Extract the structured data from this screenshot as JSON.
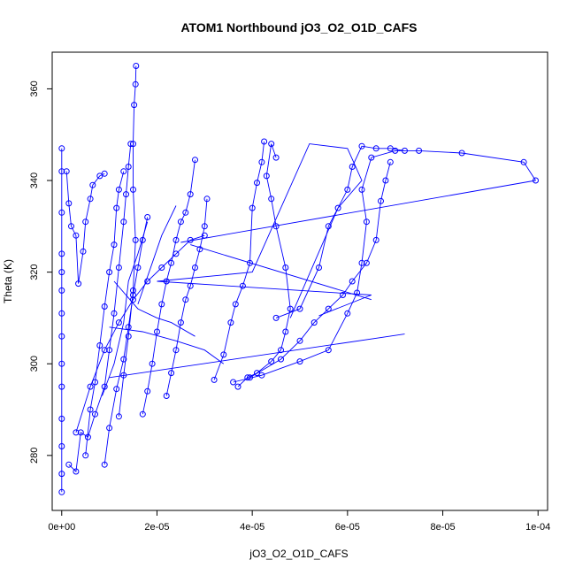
{
  "chart_data": {
    "type": "scatter",
    "title": "ATOM1 Northbound jO3_O2_O1D_CAFS",
    "xlabel": "jO3_O2_O1D_CAFS",
    "ylabel": "Theta (K)",
    "xlim": [
      -2e-06,
      0.000102
    ],
    "ylim": [
      268,
      368
    ],
    "x_ticks": [
      0,
      2e-05,
      4e-05,
      6e-05,
      8e-05,
      0.0001
    ],
    "x_tick_labels": [
      "0e+00",
      "2e-05",
      "4e-05",
      "6e-05",
      "8e-05",
      "1e-04"
    ],
    "y_ticks": [
      280,
      300,
      320,
      340,
      360
    ],
    "y_tick_labels": [
      "280",
      "300",
      "320",
      "340",
      "360"
    ],
    "grid": false,
    "legend": "none",
    "color": "#0000ff",
    "series": [
      {
        "style": "line+points",
        "points": [
          [
            0.0,
            272.0
          ],
          [
            0.0,
            276.0
          ],
          [
            0.0,
            282.0
          ],
          [
            0.0,
            288.0
          ],
          [
            0.0,
            295.0
          ],
          [
            0.0,
            300.0
          ],
          [
            0.0,
            306.0
          ],
          [
            0.0,
            311.0
          ],
          [
            0.0,
            316.0
          ],
          [
            0.0,
            320.0
          ],
          [
            0.0,
            324.0
          ],
          [
            0.0,
            333.0
          ],
          [
            0.0,
            342.0
          ],
          [
            0.0,
            347.0
          ]
        ]
      },
      {
        "style": "line+points",
        "points": [
          [
            1e-06,
            342.0
          ],
          [
            1.5e-06,
            335.0
          ],
          [
            2e-06,
            330.0
          ],
          [
            3e-06,
            328.0
          ],
          [
            3.5e-06,
            317.5
          ],
          [
            4.5e-06,
            324.5
          ],
          [
            5e-06,
            331.0
          ],
          [
            6e-06,
            336.0
          ],
          [
            6.5e-06,
            339.0
          ],
          [
            8e-06,
            341.0
          ],
          [
            9e-06,
            341.5
          ]
        ]
      },
      {
        "style": "line+points",
        "points": [
          [
            1.5e-06,
            278.0
          ],
          [
            3e-06,
            276.5
          ],
          [
            4e-06,
            285.0
          ],
          [
            5.5e-06,
            284.0
          ],
          [
            7e-06,
            289.0
          ],
          [
            9e-06,
            295.0
          ],
          [
            1e-05,
            303.0
          ],
          [
            1.1e-05,
            311.0
          ],
          [
            1.2e-05,
            321.0
          ],
          [
            1.3e-05,
            331.0
          ],
          [
            1.35e-05,
            337.0
          ],
          [
            1.4e-05,
            343.0
          ],
          [
            1.45e-05,
            348.0
          ]
        ]
      },
      {
        "style": "line+points",
        "points": [
          [
            1.2e-05,
            288.5
          ],
          [
            1.3e-05,
            297.5
          ],
          [
            1.4e-05,
            306.0
          ],
          [
            1.5e-05,
            316.0
          ],
          [
            1.55e-05,
            327.0
          ],
          [
            1.5e-05,
            338.0
          ],
          [
            1.5e-05,
            348.0
          ],
          [
            1.52e-05,
            356.5
          ],
          [
            1.55e-05,
            361.0
          ],
          [
            1.56e-05,
            365.0
          ]
        ]
      },
      {
        "style": "line+points",
        "points": [
          [
            5e-06,
            280.0
          ],
          [
            6e-06,
            290.0
          ],
          [
            7e-06,
            296.0
          ],
          [
            8e-06,
            304.0
          ],
          [
            9e-06,
            312.5
          ],
          [
            1e-05,
            320.0
          ],
          [
            1.1e-05,
            326.0
          ],
          [
            1.15e-05,
            334.0
          ],
          [
            1.2e-05,
            338.0
          ],
          [
            1.3e-05,
            342.0
          ]
        ]
      },
      {
        "style": "line+points",
        "points": [
          [
            9e-06,
            278.0
          ],
          [
            1e-05,
            286.0
          ],
          [
            1.15e-05,
            294.5
          ],
          [
            1.3e-05,
            301.0
          ],
          [
            1.4e-05,
            308.0
          ],
          [
            1.5e-05,
            315.0
          ],
          [
            1.6e-05,
            321.0
          ],
          [
            1.7e-05,
            327.0
          ],
          [
            1.8e-05,
            332.0
          ]
        ]
      },
      {
        "style": "line+points",
        "points": [
          [
            1.7e-05,
            289.0
          ],
          [
            1.8e-05,
            294.0
          ],
          [
            1.9e-05,
            300.0
          ],
          [
            2e-05,
            307.0
          ],
          [
            2.1e-05,
            313.0
          ],
          [
            2.2e-05,
            318.0
          ],
          [
            2.3e-05,
            322.0
          ],
          [
            2.4e-05,
            327.0
          ],
          [
            2.5e-05,
            331.0
          ],
          [
            2.6e-05,
            333.0
          ],
          [
            2.7e-05,
            337.0
          ],
          [
            2.8e-05,
            344.5
          ]
        ]
      },
      {
        "style": "line+points",
        "points": [
          [
            2.2e-05,
            293.0
          ],
          [
            2.3e-05,
            298.0
          ],
          [
            2.4e-05,
            303.0
          ],
          [
            2.5e-05,
            309.0
          ],
          [
            2.6e-05,
            314.0
          ],
          [
            2.7e-05,
            317.0
          ],
          [
            2.8e-05,
            321.0
          ],
          [
            2.9e-05,
            325.0
          ],
          [
            3e-05,
            330.0
          ],
          [
            3.05e-05,
            336.0
          ]
        ]
      },
      {
        "style": "line+points",
        "points": [
          [
            3e-06,
            285.0
          ],
          [
            6e-06,
            295.0
          ],
          [
            9e-06,
            303.0
          ],
          [
            1.2e-05,
            309.0
          ],
          [
            1.5e-05,
            314.0
          ],
          [
            1.8e-05,
            318.0
          ],
          [
            2.1e-05,
            321.0
          ],
          [
            2.4e-05,
            324.0
          ],
          [
            2.7e-05,
            327.0
          ],
          [
            3e-05,
            328.0
          ]
        ]
      },
      {
        "style": "line+points",
        "points": [
          [
            3.2e-05,
            296.5
          ],
          [
            3.4e-05,
            302.0
          ],
          [
            3.55e-05,
            309.0
          ],
          [
            3.65e-05,
            313.0
          ],
          [
            3.8e-05,
            317.0
          ],
          [
            3.95e-05,
            322.0
          ],
          [
            4e-05,
            334.0
          ],
          [
            4.1e-05,
            339.5
          ],
          [
            4.2e-05,
            344.0
          ],
          [
            4.25e-05,
            348.5
          ]
        ]
      },
      {
        "style": "line+points",
        "points": [
          [
            3.7e-05,
            295.0
          ],
          [
            3.9e-05,
            297.0
          ],
          [
            4.1e-05,
            298.0
          ],
          [
            4.4e-05,
            300.5
          ],
          [
            4.6e-05,
            303.0
          ],
          [
            4.7e-05,
            307.0
          ],
          [
            4.8e-05,
            312.0
          ],
          [
            4.7e-05,
            321.0
          ],
          [
            4.5e-05,
            330.0
          ],
          [
            4.4e-05,
            336.0
          ],
          [
            4.3e-05,
            341.0
          ],
          [
            4.4e-05,
            348.0
          ],
          [
            4.5e-05,
            345.0
          ]
        ]
      },
      {
        "style": "line+points",
        "points": [
          [
            3.6e-05,
            296.0
          ],
          [
            4.2e-05,
            297.5
          ],
          [
            5e-05,
            300.5
          ],
          [
            5.6e-05,
            303.0
          ],
          [
            6e-05,
            311.0
          ],
          [
            6.2e-05,
            315.5
          ],
          [
            6.3e-05,
            322.0
          ],
          [
            6.4e-05,
            331.0
          ],
          [
            6.3e-05,
            338.0
          ],
          [
            6.5e-05,
            345.0
          ],
          [
            7e-05,
            346.5
          ],
          [
            7.5e-05,
            346.5
          ],
          [
            8.4e-05,
            346.0
          ],
          [
            9.7e-05,
            344.0
          ],
          [
            9.95e-05,
            340.0
          ]
        ]
      },
      {
        "style": "line+points",
        "points": [
          [
            3.95e-05,
            297.0
          ],
          [
            4.6e-05,
            301.0
          ],
          [
            5e-05,
            305.0
          ],
          [
            5.3e-05,
            309.0
          ],
          [
            5.6e-05,
            312.0
          ],
          [
            5.9e-05,
            315.0
          ],
          [
            6.1e-05,
            318.0
          ],
          [
            6.4e-05,
            322.0
          ],
          [
            6.6e-05,
            327.0
          ],
          [
            6.7e-05,
            335.5
          ],
          [
            6.8e-05,
            340.0
          ],
          [
            6.9e-05,
            344.0
          ]
        ]
      },
      {
        "style": "line+points",
        "points": [
          [
            4.5e-05,
            310.0
          ],
          [
            5e-05,
            312.0
          ],
          [
            5.4e-05,
            321.0
          ],
          [
            5.6e-05,
            330.0
          ],
          [
            5.8e-05,
            334.0
          ],
          [
            6e-05,
            338.0
          ],
          [
            6.1e-05,
            343.0
          ],
          [
            6.3e-05,
            347.5
          ],
          [
            6.6e-05,
            347.0
          ],
          [
            6.9e-05,
            347.0
          ],
          [
            7.2e-05,
            346.5
          ]
        ]
      },
      {
        "style": "line",
        "points": [
          [
            1e-05,
            297.0
          ],
          [
            7.2e-05,
            306.5
          ]
        ]
      },
      {
        "style": "line",
        "points": [
          [
            2e-05,
            318.0
          ],
          [
            6.5e-05,
            315.0
          ],
          [
            5.4e-05,
            310.5
          ]
        ]
      },
      {
        "style": "line",
        "points": [
          [
            2.7e-05,
            326.0
          ],
          [
            6.5e-05,
            314.0
          ]
        ]
      },
      {
        "style": "line",
        "points": [
          [
            2.5e-05,
            326.5
          ],
          [
            9.95e-05,
            340.0
          ]
        ]
      },
      {
        "style": "line",
        "points": [
          [
            2e-05,
            318.0
          ],
          [
            4e-05,
            320.0
          ],
          [
            5.2e-05,
            348.0
          ],
          [
            6e-05,
            347.0
          ],
          [
            6.3e-05,
            340.0
          ],
          [
            5.8e-05,
            334.0
          ],
          [
            4.8e-05,
            310.0
          ]
        ]
      },
      {
        "style": "line",
        "points": [
          [
            8.5e-06,
            293.0
          ],
          [
            1.1e-05,
            300.0
          ],
          [
            1.3e-05,
            309.0
          ],
          [
            1.4e-05,
            318.0
          ],
          [
            1.6e-05,
            324.0
          ],
          [
            1.8e-05,
            331.0
          ]
        ]
      },
      {
        "style": "line",
        "points": [
          [
            1e-05,
            308.0
          ],
          [
            1.7e-05,
            307.0
          ],
          [
            2.4e-05,
            305.0
          ],
          [
            3e-05,
            303.0
          ],
          [
            3.4e-05,
            300.0
          ]
        ]
      },
      {
        "style": "line",
        "points": [
          [
            1.1e-05,
            318.0
          ],
          [
            1.6e-05,
            312.0
          ],
          [
            2e-05,
            310.0
          ],
          [
            2.3e-05,
            309.0
          ],
          [
            2.8e-05,
            306.0
          ]
        ]
      },
      {
        "style": "line",
        "points": [
          [
            1.6e-05,
            313.0
          ],
          [
            1.9e-05,
            322.0
          ],
          [
            2.1e-05,
            328.0
          ],
          [
            2.4e-05,
            334.5
          ]
        ]
      }
    ]
  }
}
